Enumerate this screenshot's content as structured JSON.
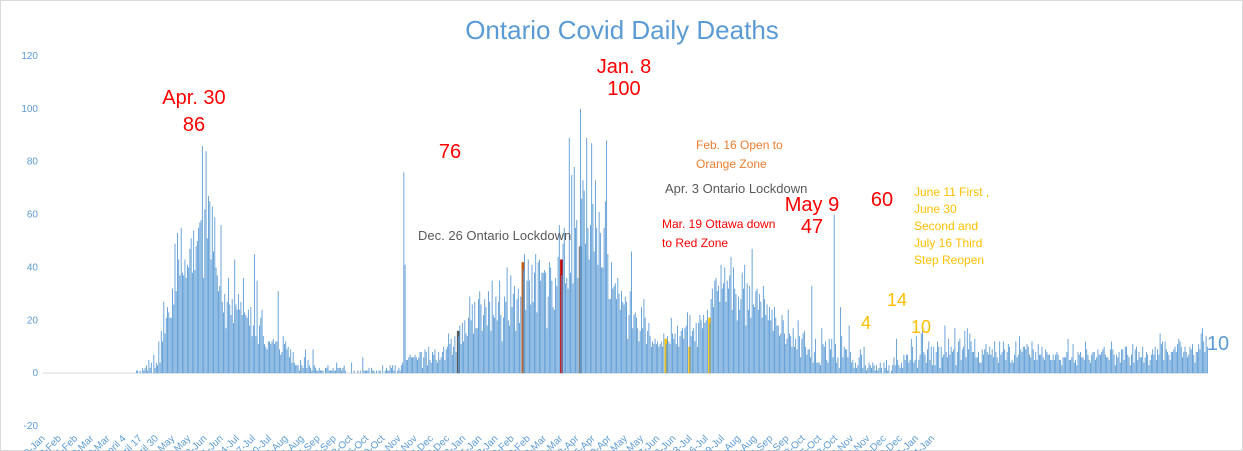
{
  "chart_data": {
    "type": "bar",
    "title": "Ontario Covid Daily Deaths",
    "xlabel": "",
    "ylabel": "",
    "ylim": [
      -20,
      120
    ],
    "y_ticks": [
      -20,
      0,
      20,
      40,
      60,
      80,
      100,
      120
    ],
    "grid": false,
    "legend": "none",
    "x_start_label": "30-Jan",
    "x_tick_labels": [
      "30-Jan",
      "12-Feb",
      "25-Feb",
      "9-Mar",
      "22-Mar",
      "April 4",
      "April 17",
      "April 30",
      "13-May",
      "26-May",
      "8-Jun",
      "21-Jun",
      "4-Jul",
      "17-Jul",
      "30-Jul",
      "12-Aug",
      "25-Aug",
      "7-Sep",
      "20-Sep",
      "3-Oct",
      "16-Oct",
      "29-Oct",
      "11-Nov",
      "24-Nov",
      "7-Dec",
      "20-Dec",
      "2-Jan",
      "15-Jan",
      "28-Jan",
      "10-Feb",
      "23-Feb",
      "8-Mar",
      "21-Mar",
      "3-Apr",
      "16-Apr",
      "29-Apr",
      "12-May",
      "25-May",
      "7-Jun",
      "20-Jun",
      "3-Jul",
      "16-Jul",
      "29-Jul",
      "11-Aug",
      "24-Aug",
      "6-Sep",
      "19-Sep",
      "2-Oct",
      "15-Oct",
      "28-Oct",
      "10-Nov",
      "23-Nov",
      "6-Dec",
      "19-Dec",
      "1-Jan",
      "14-Jan"
    ],
    "bar_color": "#5b9bd5",
    "highlight_bars": [
      {
        "date": "Dec. 26",
        "label": "Dec. 26 Ontario Lockdown",
        "color": "#595959"
      },
      {
        "date": "Feb. 16",
        "label": "Feb. 16 Open to Orange Zone",
        "color": "#c55a11"
      },
      {
        "date": "Mar. 19",
        "label": "Mar. 19 Ottawa down to Red Zone",
        "color": "#c00000"
      },
      {
        "date": "Apr. 3",
        "label": "Apr. 3 Ontario Lockdown",
        "color": "#7f7f7f"
      },
      {
        "date": "June 11",
        "label": "June 11 First",
        "color": "#ffc000"
      },
      {
        "date": "June 30",
        "label": "June 30 Second",
        "color": "#ffc000"
      },
      {
        "date": "July 16",
        "label": "July 16 Third Step Reopen",
        "color": "#ffc000"
      }
    ],
    "annotations": [
      {
        "text_lines": [
          "Apr. 30",
          "86"
        ],
        "color": "#ff0000"
      },
      {
        "text_lines": [
          "76"
        ],
        "color": "#ff0000"
      },
      {
        "text_lines": [
          "Jan. 8",
          "100"
        ],
        "color": "#ff0000"
      },
      {
        "text_lines": [
          "Dec. 26 Ontario Lockdown"
        ],
        "color": "#595959"
      },
      {
        "text_lines": [
          "Feb. 16 Open to",
          "Orange Zone"
        ],
        "color": "#ed7d31"
      },
      {
        "text_lines": [
          "Apr. 3 Ontario Lockdown"
        ],
        "color": "#595959"
      },
      {
        "text_lines": [
          "Mar. 19 Ottawa down",
          "to Red Zone"
        ],
        "color": "#ff0000"
      },
      {
        "text_lines": [
          "May 9",
          "47"
        ],
        "color": "#ff0000"
      },
      {
        "text_lines": [
          "60"
        ],
        "color": "#ff0000"
      },
      {
        "text_lines": [
          "June 11 First ,",
          "June 30",
          "Second and",
          "July 16 Third",
          "Step Reopen"
        ],
        "color": "#ffc000"
      },
      {
        "text_lines": [
          "4"
        ],
        "color": "#ffc000"
      },
      {
        "text_lines": [
          "14"
        ],
        "color": "#ffc000"
      },
      {
        "text_lines": [
          "10"
        ],
        "color": "#ffc000"
      },
      {
        "text_lines": [
          "10"
        ],
        "color": "#5b9bd5"
      }
    ],
    "series": [
      {
        "values": [
          0,
          0,
          0,
          0,
          0,
          0,
          0,
          0,
          0,
          0,
          0,
          0,
          0,
          0,
          0,
          0,
          0,
          0,
          0,
          0,
          0,
          0,
          0,
          0,
          0,
          0,
          0,
          0,
          0,
          0,
          0,
          0,
          0,
          0,
          0,
          0,
          0,
          0,
          0,
          0,
          0,
          0,
          0,
          0,
          0,
          0,
          0,
          0,
          0,
          0,
          0,
          0,
          0,
          0,
          0,
          0,
          0,
          0,
          0,
          0,
          0,
          0,
          0,
          0,
          0,
          0,
          0,
          0,
          0,
          0,
          0,
          0,
          0,
          1,
          1,
          0,
          1,
          0,
          2,
          1,
          2,
          3,
          1,
          5,
          2,
          4,
          0,
          7,
          2,
          4,
          3,
          12,
          4,
          16,
          12,
          27,
          15,
          21,
          25,
          23,
          21,
          21,
          32,
          26,
          49,
          31,
          53,
          43,
          37,
          55,
          38,
          37,
          43,
          36,
          41,
          40,
          47,
          51,
          38,
          54,
          39,
          48,
          50,
          55,
          57,
          58,
          86,
          36,
          62,
          84,
          51,
          67,
          65,
          43,
          63,
          46,
          59,
          40,
          37,
          31,
          33,
          56,
          27,
          23,
          30,
          17,
          27,
          36,
          26,
          22,
          28,
          19,
          43,
          26,
          24,
          30,
          24,
          27,
          22,
          36,
          23,
          22,
          21,
          24,
          18,
          25,
          14,
          18,
          45,
          14,
          35,
          11,
          18,
          21,
          24,
          14,
          11,
          10,
          9,
          12,
          12,
          11,
          12,
          13,
          11,
          12,
          12,
          31,
          9,
          7,
          8,
          14,
          11,
          12,
          9,
          10,
          6,
          9,
          4,
          8,
          4,
          3,
          3,
          3,
          1,
          5,
          3,
          2,
          6,
          9,
          2,
          5,
          3,
          2,
          1,
          9,
          3,
          2,
          1,
          1,
          2,
          1,
          1,
          1,
          0,
          2,
          2,
          3,
          1,
          1,
          1,
          2,
          1,
          1,
          4,
          2,
          2,
          2,
          1,
          2,
          3,
          1,
          0,
          0,
          0,
          0,
          4,
          0,
          1,
          0,
          0,
          1,
          0,
          1,
          0,
          6,
          1,
          1,
          1,
          1,
          2,
          0,
          2,
          1,
          1,
          0,
          1,
          0,
          1,
          1,
          0,
          3,
          0,
          1,
          2,
          1,
          1,
          3,
          2,
          3,
          1,
          3,
          0,
          1,
          2,
          1,
          3,
          4,
          76,
          41,
          5,
          5,
          6,
          7,
          6,
          6,
          6,
          7,
          6,
          5,
          6,
          8,
          8,
          2,
          6,
          9,
          8,
          3,
          10,
          5,
          4,
          8,
          7,
          9,
          5,
          4,
          8,
          5,
          6,
          8,
          10,
          5,
          9,
          10,
          15,
          11,
          13,
          7,
          10,
          14,
          8,
          16,
          14,
          18,
          11,
          19,
          12,
          20,
          15,
          14,
          21,
          29,
          20,
          26,
          15,
          27,
          17,
          17,
          28,
          31,
          26,
          16,
          22,
          28,
          25,
          18,
          31,
          27,
          16,
          35,
          22,
          21,
          29,
          20,
          27,
          35,
          22,
          12,
          21,
          29,
          27,
          40,
          20,
          18,
          37,
          25,
          30,
          33,
          16,
          28,
          32,
          19,
          29,
          42,
          39,
          45,
          24,
          35,
          43,
          35,
          26,
          41,
          27,
          38,
          45,
          23,
          42,
          43,
          35,
          38,
          38,
          39,
          38,
          17,
          29,
          42,
          40,
          35,
          25,
          24,
          36,
          33,
          44,
          56,
          43,
          37,
          49,
          55,
          34,
          36,
          32,
          89,
          38,
          75,
          34,
          78,
          55,
          58,
          36,
          48,
          100,
          66,
          73,
          69,
          49,
          89,
          55,
          43,
          56,
          87,
          64,
          46,
          73,
          55,
          41,
          61,
          53,
          40,
          40,
          55,
          65,
          88,
          45,
          28,
          28,
          42,
          32,
          33,
          34,
          28,
          36,
          30,
          24,
          31,
          27,
          26,
          29,
          27,
          13,
          22,
          31,
          46,
          17,
          22,
          23,
          21,
          17,
          12,
          16,
          25,
          17,
          28,
          21,
          11,
          16,
          19,
          14,
          10,
          12,
          11,
          13,
          11,
          12,
          10,
          11,
          12,
          10,
          15,
          13,
          11,
          14,
          12,
          11,
          21,
          15,
          13,
          15,
          11,
          18,
          10,
          14,
          16,
          17,
          13,
          17,
          18,
          23,
          10,
          22,
          14,
          16,
          17,
          12,
          19,
          10,
          19,
          22,
          20,
          17,
          22,
          19,
          20,
          24,
          21,
          19,
          28,
          32,
          25,
          35,
          36,
          31,
          33,
          27,
          41,
          32,
          34,
          40,
          27,
          35,
          32,
          37,
          44,
          24,
          40,
          32,
          30,
          20,
          29,
          24,
          28,
          38,
          32,
          41,
          18,
          34,
          24,
          33,
          21,
          47,
          26,
          25,
          31,
          32,
          24,
          30,
          27,
          21,
          33,
          28,
          22,
          26,
          20,
          25,
          20,
          24,
          16,
          25,
          21,
          18,
          18,
          14,
          15,
          22,
          20,
          15,
          11,
          13,
          24,
          15,
          14,
          10,
          17,
          10,
          13,
          9,
          20,
          14,
          6,
          13,
          15,
          16,
          10,
          7,
          9,
          9,
          6,
          33,
          4,
          8,
          13,
          4,
          4,
          4,
          3,
          17,
          11,
          10,
          12,
          5,
          4,
          13,
          9,
          13,
          6,
          60,
          11,
          4,
          6,
          2,
          25,
          14,
          6,
          10,
          9,
          9,
          6,
          18,
          8,
          4,
          5,
          2,
          4,
          2,
          3,
          6,
          9,
          7,
          2,
          10,
          3,
          1,
          2,
          4,
          3,
          2,
          4,
          3,
          1,
          3,
          1,
          2,
          4,
          2,
          0,
          4,
          2,
          5,
          1,
          3,
          0,
          1,
          3,
          6,
          3,
          13,
          5,
          3,
          2,
          4,
          2,
          7,
          5,
          7,
          7,
          4,
          5,
          13,
          10,
          4,
          5,
          14,
          2,
          5,
          7,
          15,
          18,
          8,
          7,
          4,
          9,
          12,
          5,
          10,
          3,
          10,
          3,
          8,
          12,
          10,
          2,
          10,
          6,
          7,
          18,
          8,
          6,
          13,
          7,
          10,
          8,
          9,
          17,
          3,
          8,
          12,
          13,
          5,
          9,
          10,
          16,
          6,
          17,
          9,
          15,
          12,
          8,
          8,
          13,
          6,
          6,
          8,
          4,
          4,
          9,
          7,
          9,
          11,
          8,
          7,
          10,
          7,
          9,
          6,
          12,
          8,
          6,
          4,
          12,
          7,
          8,
          12,
          9,
          5,
          8,
          11,
          10,
          4,
          5,
          4,
          7,
          12,
          6,
          7,
          14,
          9,
          8,
          10,
          10,
          9,
          11,
          10,
          7,
          6,
          12,
          9,
          5,
          8,
          5,
          11,
          7,
          7,
          10,
          6,
          5,
          9,
          8,
          7,
          7,
          5,
          5,
          7,
          5,
          7,
          8,
          7,
          5,
          5,
          3,
          6,
          6,
          6,
          8,
          13,
          5,
          5,
          6,
          11,
          4,
          5,
          3,
          8,
          7,
          8,
          6,
          6,
          5,
          12,
          9,
          7,
          5,
          4,
          7,
          8,
          8,
          5,
          6,
          9,
          7,
          7,
          8,
          9,
          10,
          7,
          6,
          6,
          5,
          9,
          12,
          9,
          7,
          3,
          7,
          6,
          8,
          4,
          9,
          9,
          5,
          10,
          10,
          7,
          6,
          3,
          7,
          11,
          4,
          9,
          10,
          5,
          8,
          6,
          6,
          10,
          4,
          6,
          8,
          7,
          3,
          5,
          7,
          9,
          7,
          10,
          5,
          9,
          7,
          15,
          11,
          12,
          5,
          12,
          9,
          8,
          7,
          5,
          8,
          8,
          9,
          10,
          8,
          11,
          13,
          12,
          10,
          6,
          8,
          10,
          8,
          6,
          7,
          10,
          9,
          11,
          7,
          4,
          8,
          8,
          11,
          9,
          15,
          17,
          12,
          8,
          14,
          10
        ]
      }
    ]
  }
}
